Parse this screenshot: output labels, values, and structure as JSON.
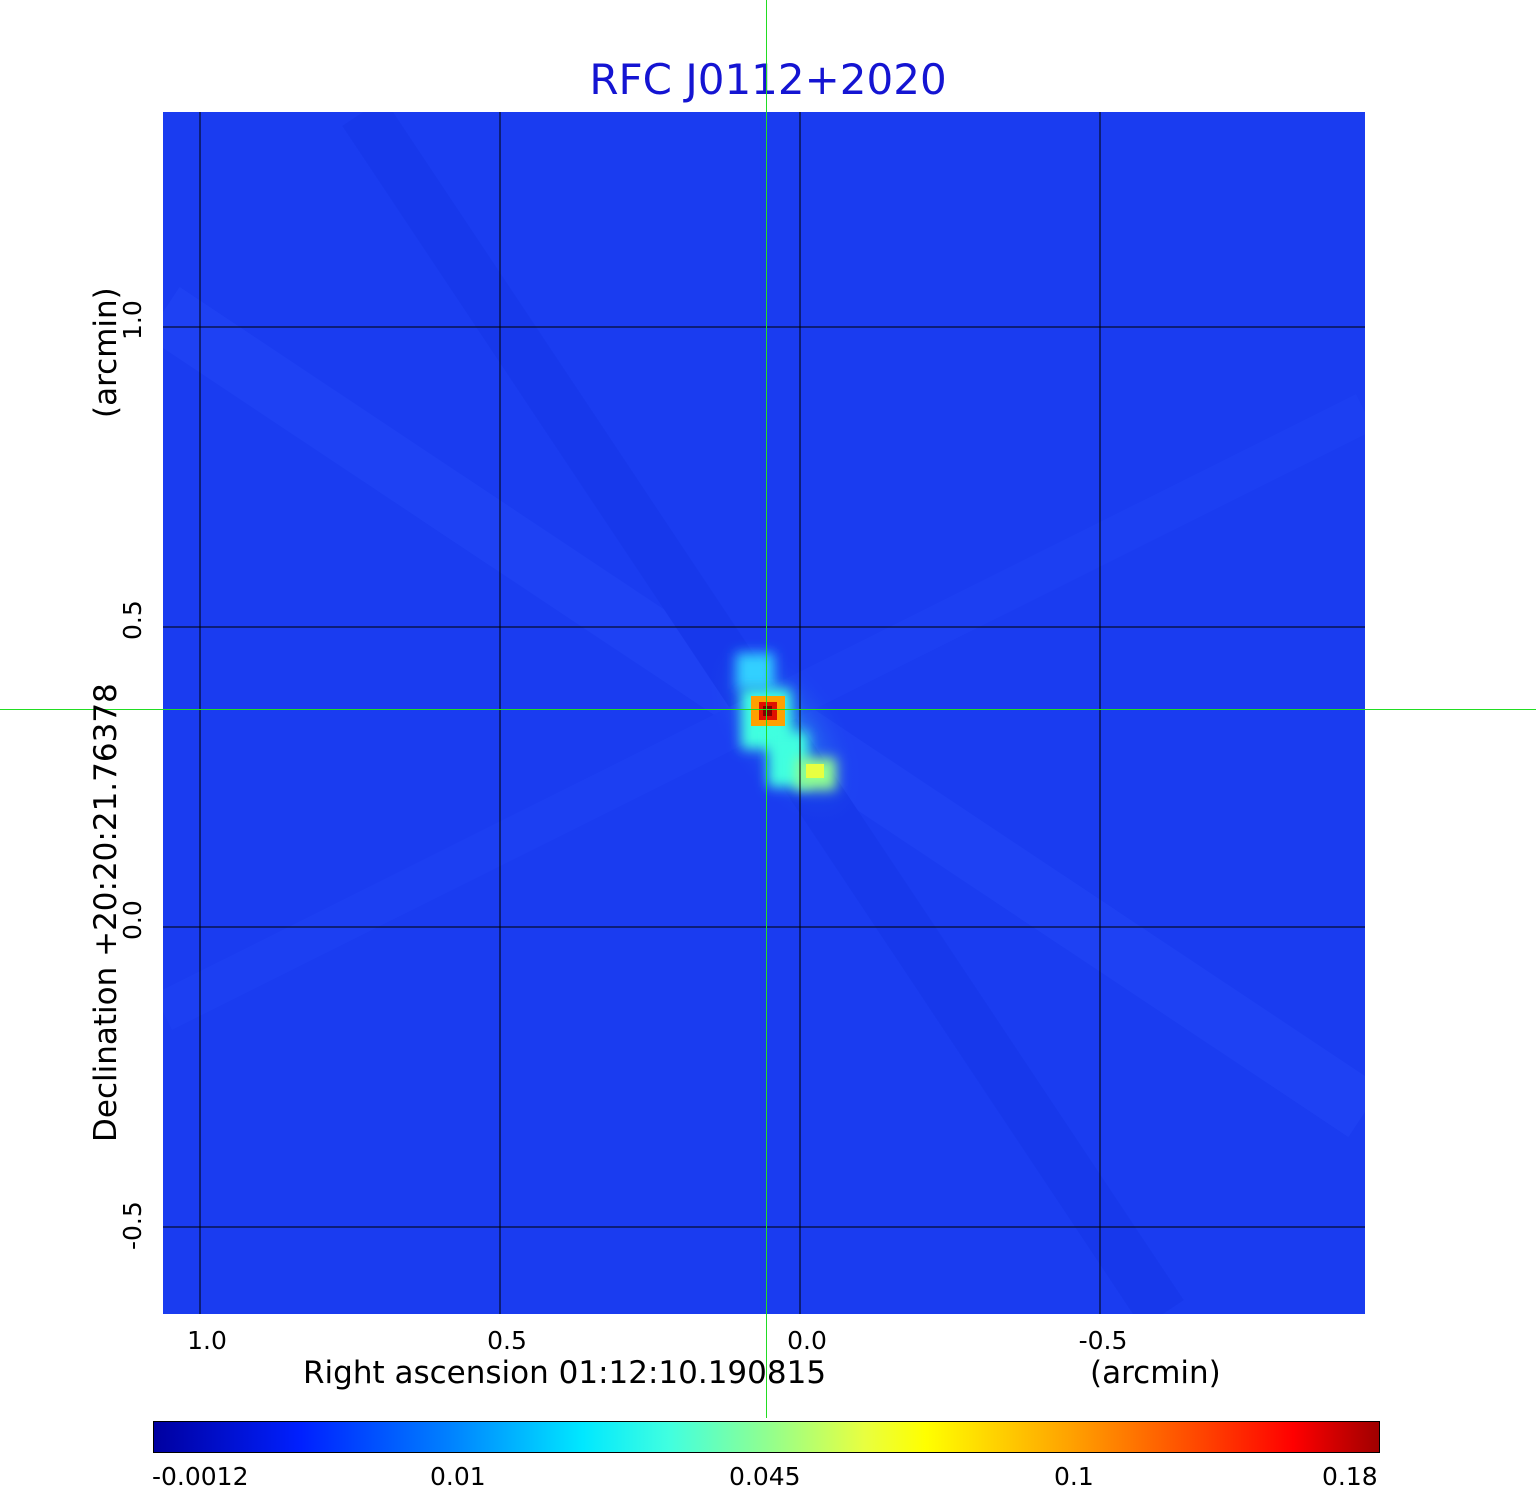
{
  "title": "RFC J0112+2020",
  "x_axis": {
    "label": "Right ascension  01:12:10.190815",
    "unit": "(arcmin)",
    "ticks": [
      "1.0",
      "0.5",
      "0.0",
      "-0.5"
    ]
  },
  "y_axis": {
    "label": "Declination  +20:20:21.76378",
    "unit": "(arcmin)",
    "ticks": [
      "1.0",
      "0.5",
      "0.0",
      "-0.5"
    ]
  },
  "colorbar": {
    "ticks": [
      "-0.0012",
      "0.01",
      "0.045",
      "0.1",
      "0.18"
    ]
  },
  "colors": {
    "background_map": "#1a3cf0",
    "crosshair": "#22dd22",
    "title": "#1414d2",
    "gridline": "#000000"
  }
}
